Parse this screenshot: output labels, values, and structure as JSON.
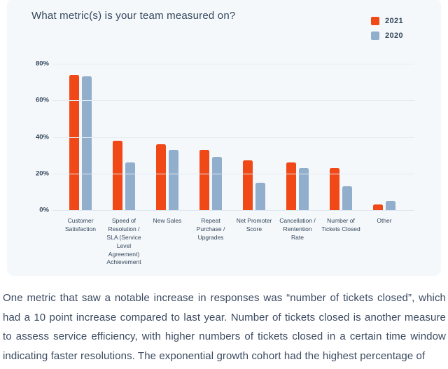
{
  "chart_data": {
    "type": "bar",
    "title": "What metric(s) is your team measured on?",
    "categories": [
      "Customer Satisfaction",
      "Speed of Resolution / SLA (Service Level Agreement) Achievement",
      "New Sales",
      "Repeat Purchase / Upgrades",
      "Net Promoter Score",
      "Cancellation / Rentention Rate",
      "Number of Tickets Closed",
      "Other"
    ],
    "series": [
      {
        "name": "2021",
        "color": "#f04917",
        "values": [
          74,
          38,
          36,
          33,
          27,
          26,
          23,
          3
        ]
      },
      {
        "name": "2020",
        "color": "#91aecc",
        "values": [
          73,
          26,
          33,
          29,
          15,
          23,
          13,
          5
        ]
      }
    ],
    "xlabel": "",
    "ylabel": "",
    "ylim": [
      0,
      80
    ],
    "yticks": [
      0,
      20,
      40,
      60,
      80
    ],
    "ytick_labels": [
      "0%",
      "20%",
      "40%",
      "60%",
      "80%"
    ],
    "grid": true,
    "legend_position": "top-right"
  },
  "colors": {
    "card_background": "#f5f8fb",
    "text": "#33475b",
    "gridline": "#e4ebf2",
    "series_2021": "#f04917",
    "series_2020": "#91aecc"
  },
  "paragraph": {
    "text": "One metric that saw a notable increase in responses was “number of tickets closed”, which had a 10 point increase compared to last year. Number of tickets closed is another measure to assess service efficiency, with higher numbers of tickets closed in a certain time window indicating faster resolutions. The exponential growth cohort had the highest percentage of"
  }
}
